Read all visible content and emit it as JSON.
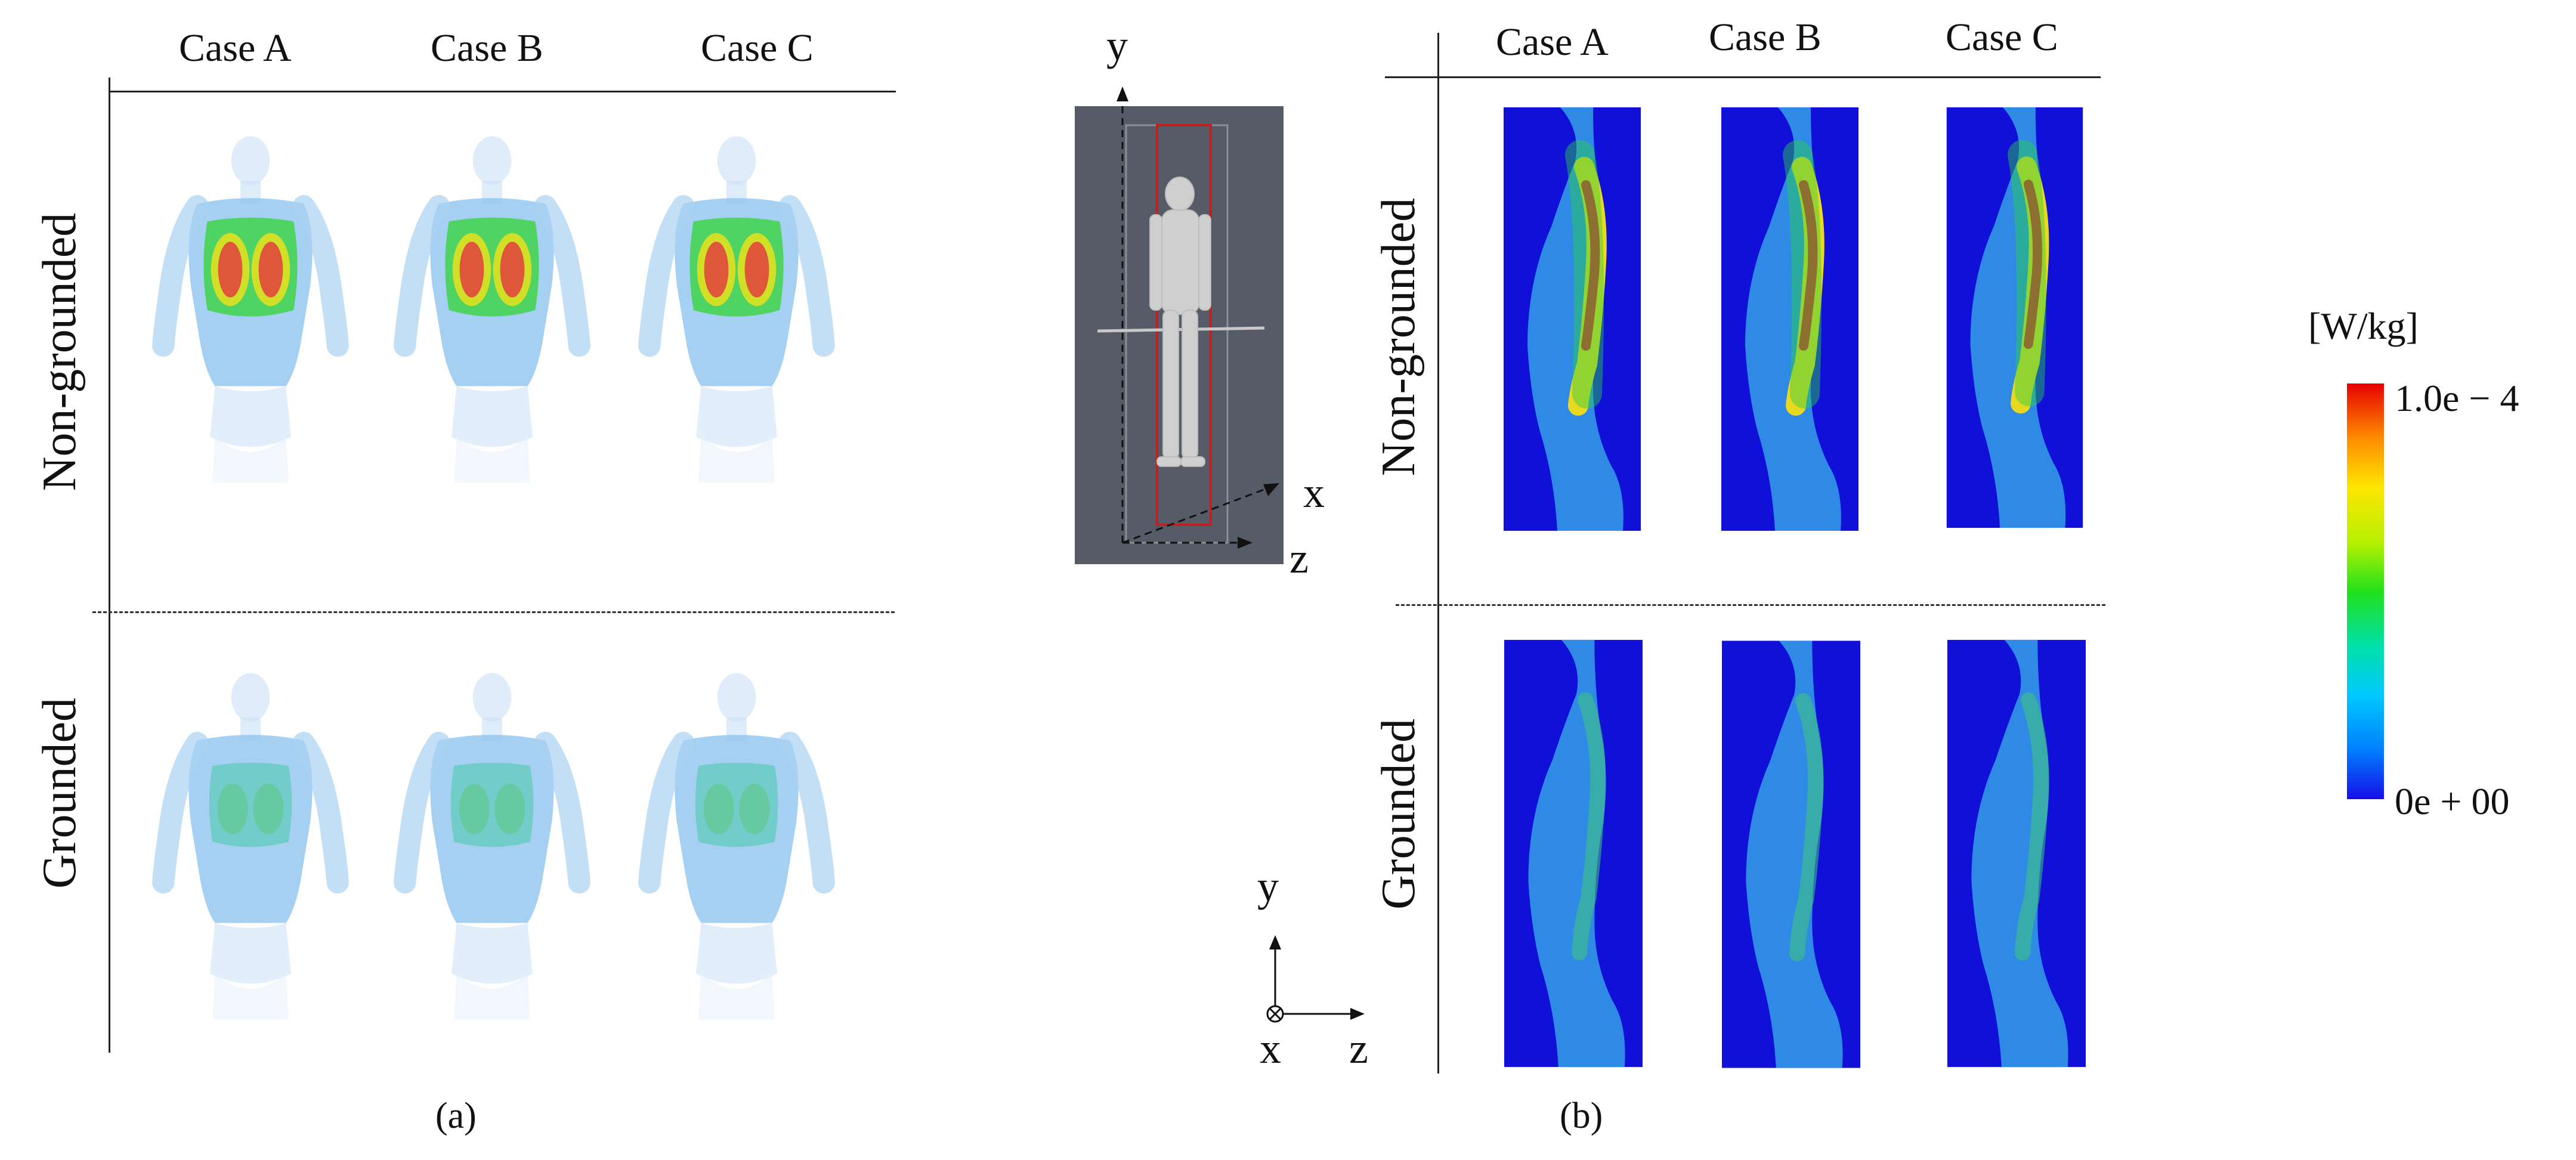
{
  "panel_a": {
    "columns": [
      "Case A",
      "Case B",
      "Case C"
    ],
    "rows": [
      "Non-grounded",
      "Grounded"
    ],
    "label": "(a)"
  },
  "panel_b": {
    "columns": [
      "Case A",
      "Case B",
      "Case C"
    ],
    "rows": [
      "Non-grounded",
      "Grounded"
    ],
    "label": "(b)"
  },
  "model_axes": {
    "y": "y",
    "x": "x",
    "z": "z"
  },
  "coord_axes": {
    "y": "y",
    "x": "x",
    "z": "z"
  },
  "colorbar": {
    "unit": "[W/kg]",
    "max": "1.0e − 4",
    "min": "0e + 00",
    "colors": [
      "#e60000",
      "#ff8a00",
      "#ffe600",
      "#b8f000",
      "#22e01a",
      "#00e0a8",
      "#00c8ff",
      "#0080ff",
      "#1510e8"
    ]
  }
}
